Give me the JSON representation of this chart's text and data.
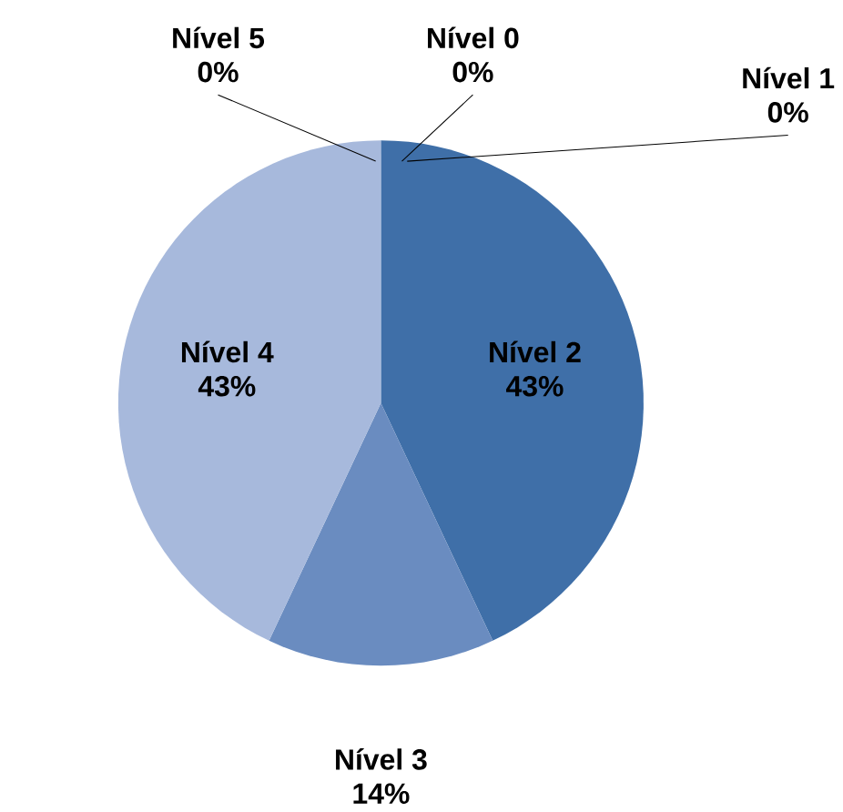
{
  "chart_data": {
    "type": "pie",
    "categories": [
      "Nível 0",
      "Nível 1",
      "Nível 2",
      "Nível 3",
      "Nível 4",
      "Nível 5"
    ],
    "values": [
      0,
      0,
      43,
      14,
      43,
      0
    ],
    "value_labels": [
      "0%",
      "0%",
      "43%",
      "14%",
      "43%",
      "0%"
    ],
    "colors": [
      "#2c4d75",
      "#3a5f8f",
      "#3f6fa8",
      "#6a8cc0",
      "#a7b9dc",
      "#c5d1e8"
    ]
  }
}
